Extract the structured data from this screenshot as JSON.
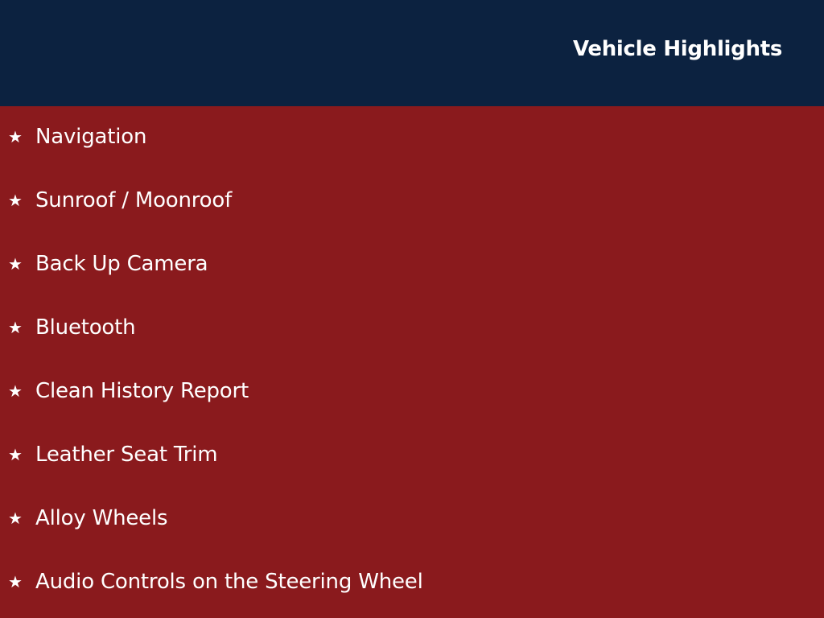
{
  "header": {
    "title": "Vehicle Highlights"
  },
  "colors": {
    "header_bg": "#0c2240",
    "body_bg": "#8a1a1d",
    "text": "#ffffff"
  },
  "bullet_icon": "star-icon",
  "highlights": [
    "Navigation",
    "Sunroof / Moonroof",
    "Back Up Camera",
    "Bluetooth",
    "Clean History Report",
    "Leather Seat Trim",
    "Alloy Wheels",
    "Audio Controls on the Steering Wheel"
  ]
}
